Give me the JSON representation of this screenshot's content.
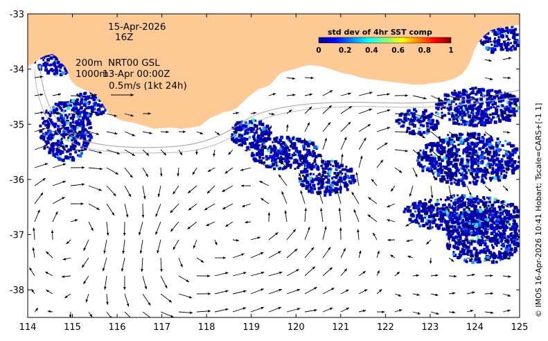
{
  "map": {
    "date_label": "15-Apr-2026",
    "hour_label": "16Z",
    "isobath_label_1": "200m",
    "isobath_label_2": "1000m",
    "product_label": "NRT00 GSL",
    "fields_time_label": "13-Apr 00:00Z",
    "scale_arrow_label": "0.5m/s (1kt 24h)",
    "credit": "© IMOS 16-Apr-2026 10:41 Hobart; Tscale=CARS+[-1 1]",
    "x_ticks": [
      "114",
      "115",
      "116",
      "117",
      "118",
      "119",
      "120",
      "121",
      "122",
      "123",
      "124",
      "125"
    ],
    "y_ticks": [
      "-33",
      "-34",
      "-35",
      "-36",
      "-37",
      "-38"
    ],
    "lon_range": [
      114,
      125
    ],
    "lat_range": [
      -38.5,
      -33
    ],
    "land_color": "#fdca96",
    "colorbar": {
      "title": "std dev of 4hr SST comp",
      "ticks": [
        "0",
        "0.2",
        "0.4",
        "0.6",
        "0.8",
        "1"
      ],
      "range": [
        0,
        1
      ],
      "colormap": "jet"
    }
  }
}
